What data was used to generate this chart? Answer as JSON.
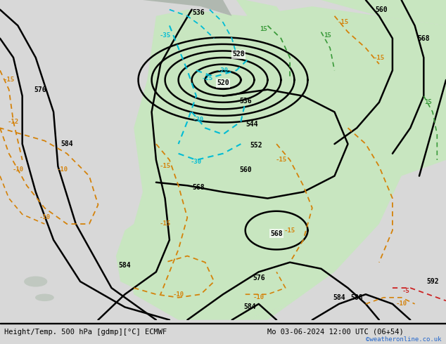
{
  "title_left": "Height/Temp. 500 hPa [gdmp][°C] ECMWF",
  "title_right": "Mo 03-06-2024 12:00 UTC (06+54)",
  "credit": "©weatheronline.co.uk",
  "bg_color": "#e8e8e8",
  "land_color": "#c8e6c0",
  "sea_color": "#dcdcdc",
  "z500_color": "#000000",
  "temp_neg_color": "#d4820a",
  "temp_pos_color": "#5cb85c",
  "cyan_contour_color": "#00bcd4",
  "fig_width": 6.34,
  "fig_height": 4.9,
  "dpi": 100,
  "bottom_bar_color": "#f0f0f0"
}
